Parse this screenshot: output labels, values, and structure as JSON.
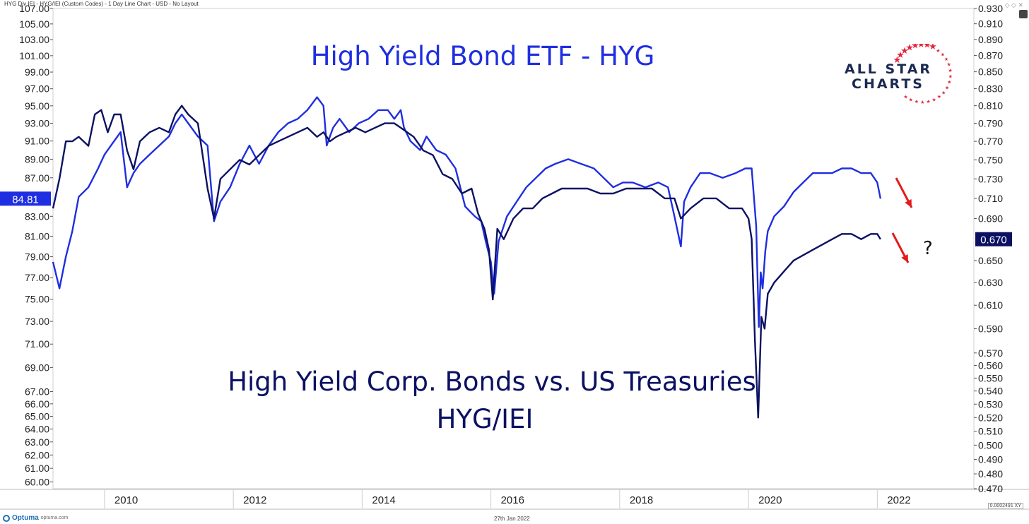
{
  "header": {
    "title": "HYG Div IEI - HYG/IEI (Custom Codes) - 1 Day Line Chart - USD - No Layout",
    "controls": "◇ ◇ ✕"
  },
  "footer": {
    "logo_name": "Optuma",
    "logo_url": "optuma.com",
    "date": "27th Jan 2022",
    "scale": "0.0002491 XY"
  },
  "brand": {
    "line1": "ALL STAR",
    "line2": "CHARTS"
  },
  "colors": {
    "hyg": "#1f2ee0",
    "ratio": "#0b1162",
    "arrow": "#e41b1b",
    "axis_label_bg_left": "#1f2ee0",
    "axis_label_bg_right": "#0b1162"
  },
  "chart_data": {
    "type": "line",
    "title": "High Yield Bond ETF - HYG",
    "subtitle": "High Yield Corp. Bonds vs. US Treasuries",
    "subtitle2": "HYG/IEI",
    "annotation": "?",
    "x_ticks": [
      "2010",
      "2012",
      "2014",
      "2016",
      "2018",
      "2020",
      "2022"
    ],
    "xlim": [
      2009.2,
      2023.5
    ],
    "left_axis": {
      "scale": "log",
      "ylim": [
        59.5,
        107
      ],
      "ticks": [
        "107.00",
        "105.00",
        "103.00",
        "101.00",
        "99.00",
        "97.00",
        "95.00",
        "93.00",
        "91.00",
        "89.00",
        "87.00",
        "83.00",
        "81.00",
        "79.00",
        "77.00",
        "75.00",
        "73.00",
        "71.00",
        "69.00",
        "67.00",
        "66.00",
        "65.00",
        "64.00",
        "63.00",
        "62.00",
        "61.00",
        "60.00"
      ],
      "last_value": "84.81"
    },
    "right_axis": {
      "scale": "log",
      "ylim": [
        0.47,
        0.93
      ],
      "ticks": [
        "0.930",
        "0.910",
        "0.890",
        "0.870",
        "0.850",
        "0.830",
        "0.810",
        "0.790",
        "0.770",
        "0.750",
        "0.730",
        "0.710",
        "0.690",
        "0.650",
        "0.630",
        "0.610",
        "0.590",
        "0.570",
        "0.560",
        "0.550",
        "0.540",
        "0.530",
        "0.520",
        "0.510",
        "0.500",
        "0.490",
        "0.480",
        "0.470"
      ],
      "last_value": "0.670"
    },
    "series": [
      {
        "name": "HYG",
        "axis": "left",
        "x": [
          2009.2,
          2009.3,
          2009.4,
          2009.5,
          2009.6,
          2009.75,
          2009.9,
          2010.0,
          2010.1,
          2010.25,
          2010.35,
          2010.45,
          2010.55,
          2010.7,
          2010.85,
          2011.0,
          2011.1,
          2011.2,
          2011.3,
          2011.45,
          2011.6,
          2011.7,
          2011.8,
          2011.95,
          2012.1,
          2012.25,
          2012.4,
          2012.55,
          2012.7,
          2012.85,
          2013.0,
          2013.15,
          2013.3,
          2013.4,
          2013.45,
          2013.5,
          2013.55,
          2013.65,
          2013.8,
          2013.95,
          2014.1,
          2014.25,
          2014.4,
          2014.5,
          2014.6,
          2014.65,
          2014.75,
          2014.9,
          2015.0,
          2015.15,
          2015.3,
          2015.45,
          2015.6,
          2015.75,
          2015.85,
          2015.92,
          2016.0,
          2016.05,
          2016.12,
          2016.25,
          2016.4,
          2016.55,
          2016.7,
          2016.85,
          2017.0,
          2017.2,
          2017.4,
          2017.6,
          2017.75,
          2017.9,
          2018.05,
          2018.2,
          2018.4,
          2018.6,
          2018.75,
          2018.85,
          2018.95,
          2019.0,
          2019.1,
          2019.25,
          2019.4,
          2019.6,
          2019.8,
          2019.95,
          2020.05,
          2020.12,
          2020.16,
          2020.19,
          2020.22,
          2020.26,
          2020.3,
          2020.4,
          2020.55,
          2020.7,
          2020.85,
          2021.0,
          2021.15,
          2021.3,
          2021.45,
          2021.6,
          2021.75,
          2021.9,
          2022.0,
          2022.05
        ],
        "values": [
          78.5,
          76.0,
          79.0,
          81.5,
          85.0,
          86.0,
          88.0,
          89.5,
          90.5,
          92.0,
          86.0,
          87.5,
          88.5,
          89.5,
          90.5,
          91.5,
          93.0,
          94.0,
          93.0,
          91.5,
          90.5,
          82.5,
          84.5,
          86.0,
          88.5,
          90.5,
          88.5,
          90.5,
          92.0,
          93.0,
          93.5,
          94.5,
          96.0,
          95.0,
          90.5,
          91.5,
          92.5,
          93.5,
          92.0,
          93.0,
          93.5,
          94.5,
          94.5,
          93.5,
          94.5,
          92.5,
          91.0,
          90.0,
          91.5,
          90.0,
          89.5,
          88.0,
          84.0,
          83.0,
          82.5,
          80.5,
          78.5,
          75.5,
          80.5,
          83.0,
          84.5,
          86.0,
          87.0,
          88.0,
          88.5,
          89.0,
          88.5,
          88.0,
          87.0,
          86.0,
          86.5,
          86.5,
          86.0,
          86.5,
          86.0,
          83.0,
          80.0,
          84.5,
          86.0,
          87.5,
          87.5,
          87.0,
          87.5,
          88.0,
          88.0,
          82.0,
          72.5,
          77.5,
          76.0,
          79.5,
          81.5,
          83.0,
          84.0,
          85.5,
          86.5,
          87.5,
          87.5,
          87.5,
          88.0,
          88.0,
          87.5,
          87.5,
          86.5,
          84.81
        ]
      },
      {
        "name": "HYG/IEI",
        "axis": "right",
        "x": [
          2009.2,
          2009.3,
          2009.4,
          2009.5,
          2009.6,
          2009.75,
          2009.85,
          2009.95,
          2010.05,
          2010.15,
          2010.25,
          2010.35,
          2010.45,
          2010.55,
          2010.7,
          2010.85,
          2011.0,
          2011.1,
          2011.2,
          2011.3,
          2011.45,
          2011.6,
          2011.7,
          2011.8,
          2011.95,
          2012.1,
          2012.25,
          2012.4,
          2012.55,
          2012.7,
          2012.85,
          2013.0,
          2013.15,
          2013.3,
          2013.4,
          2013.5,
          2013.6,
          2013.75,
          2013.9,
          2014.05,
          2014.2,
          2014.35,
          2014.5,
          2014.6,
          2014.7,
          2014.8,
          2014.95,
          2015.1,
          2015.25,
          2015.4,
          2015.55,
          2015.7,
          2015.8,
          2015.9,
          2015.97,
          2016.03,
          2016.1,
          2016.2,
          2016.35,
          2016.5,
          2016.65,
          2016.8,
          2016.95,
          2017.1,
          2017.3,
          2017.5,
          2017.7,
          2017.9,
          2018.1,
          2018.3,
          2018.5,
          2018.7,
          2018.85,
          2018.95,
          2019.1,
          2019.3,
          2019.5,
          2019.7,
          2019.9,
          2020.0,
          2020.05,
          2020.1,
          2020.15,
          2020.2,
          2020.25,
          2020.3,
          2020.4,
          2020.55,
          2020.7,
          2020.85,
          2021.0,
          2021.15,
          2021.3,
          2021.45,
          2021.6,
          2021.75,
          2021.9,
          2022.0,
          2022.05
        ],
        "values": [
          0.7,
          0.73,
          0.77,
          0.77,
          0.775,
          0.765,
          0.8,
          0.805,
          0.78,
          0.8,
          0.8,
          0.76,
          0.74,
          0.77,
          0.78,
          0.785,
          0.78,
          0.8,
          0.81,
          0.8,
          0.79,
          0.72,
          0.69,
          0.73,
          0.74,
          0.75,
          0.745,
          0.755,
          0.765,
          0.77,
          0.775,
          0.78,
          0.785,
          0.775,
          0.78,
          0.77,
          0.775,
          0.78,
          0.785,
          0.78,
          0.785,
          0.79,
          0.79,
          0.785,
          0.78,
          0.775,
          0.76,
          0.755,
          0.735,
          0.73,
          0.715,
          0.72,
          0.695,
          0.68,
          0.66,
          0.615,
          0.68,
          0.67,
          0.69,
          0.7,
          0.7,
          0.71,
          0.715,
          0.72,
          0.72,
          0.72,
          0.715,
          0.715,
          0.72,
          0.72,
          0.72,
          0.71,
          0.71,
          0.69,
          0.7,
          0.71,
          0.71,
          0.7,
          0.7,
          0.69,
          0.67,
          0.58,
          0.52,
          0.6,
          0.59,
          0.62,
          0.63,
          0.64,
          0.65,
          0.655,
          0.66,
          0.665,
          0.67,
          0.675,
          0.675,
          0.67,
          0.675,
          0.675,
          0.67
        ]
      }
    ]
  }
}
